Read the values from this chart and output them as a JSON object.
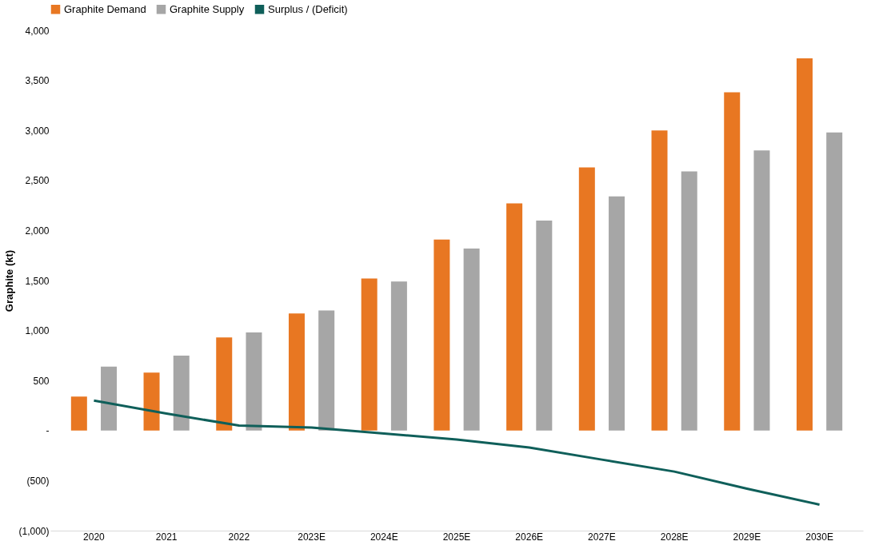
{
  "chart_data": {
    "type": "bar",
    "ylabel": "Graphite (kt)",
    "categories": [
      "2020",
      "2021",
      "2022",
      "2023E",
      "2024E",
      "2025E",
      "2026E",
      "2027E",
      "2028E",
      "2029E",
      "2030E"
    ],
    "series": [
      {
        "name": "Graphite Demand",
        "color": "#e87722",
        "values": [
          340,
          580,
          930,
          1170,
          1520,
          1910,
          2270,
          2630,
          3000,
          3380,
          3720
        ]
      },
      {
        "name": "Graphite Supply",
        "color": "#a6a6a6",
        "values": [
          640,
          750,
          980,
          1200,
          1490,
          1820,
          2100,
          2340,
          2590,
          2800,
          2980
        ]
      },
      {
        "name": "Surplus / (Deficit)",
        "type": "line",
        "color": "#0f5f5a",
        "values": [
          300,
          170,
          50,
          30,
          -30,
          -90,
          -170,
          -290,
          -410,
          -580,
          -740
        ]
      }
    ],
    "ylim": [
      -1000,
      4000
    ],
    "yticks": [
      {
        "value": -1000,
        "label": "(1,000)"
      },
      {
        "value": -500,
        "label": "(500)"
      },
      {
        "value": 0,
        "label": "-"
      },
      500,
      {
        "value": 1000,
        "label": "1,000"
      },
      {
        "value": 1500,
        "label": "1,500"
      },
      {
        "value": 2000,
        "label": "2,000"
      },
      {
        "value": 2500,
        "label": "2,500"
      },
      {
        "value": 3000,
        "label": "3,000"
      },
      {
        "value": 3500,
        "label": "3,500"
      },
      {
        "value": 4000,
        "label": "4,000"
      }
    ],
    "legend": "top",
    "grid": false
  }
}
